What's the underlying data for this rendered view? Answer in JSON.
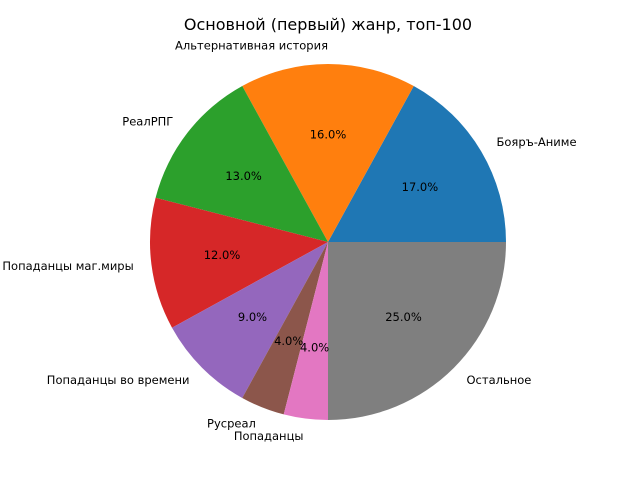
{
  "chart_data": {
    "type": "pie",
    "title": "Основной (первый) жанр, топ-100",
    "slices": [
      {
        "label": "Бояръ-Аниме",
        "value": 17.0,
        "pct_label": "17.0%",
        "color": "#1f77b4"
      },
      {
        "label": "Альтернативная история",
        "value": 16.0,
        "pct_label": "16.0%",
        "color": "#ff7f0e"
      },
      {
        "label": "РеалРПГ",
        "value": 13.0,
        "pct_label": "13.0%",
        "color": "#2ca02c"
      },
      {
        "label": "Попаданцы маг.миры",
        "value": 12.0,
        "pct_label": "12.0%",
        "color": "#d62728"
      },
      {
        "label": "Попаданцы во времени",
        "value": 9.0,
        "pct_label": "9.0%",
        "color": "#9467bd"
      },
      {
        "label": "Русреал",
        "value": 4.0,
        "pct_label": "4.0%",
        "color": "#8c564b"
      },
      {
        "label": "Попаданцы",
        "value": 4.0,
        "pct_label": "4.0%",
        "color": "#e377c2"
      },
      {
        "label": "Остальное",
        "value": 25.0,
        "pct_label": "25.0%",
        "color": "#7f7f7f"
      }
    ],
    "start_angle_deg": 0,
    "direction": "counterclockwise"
  }
}
